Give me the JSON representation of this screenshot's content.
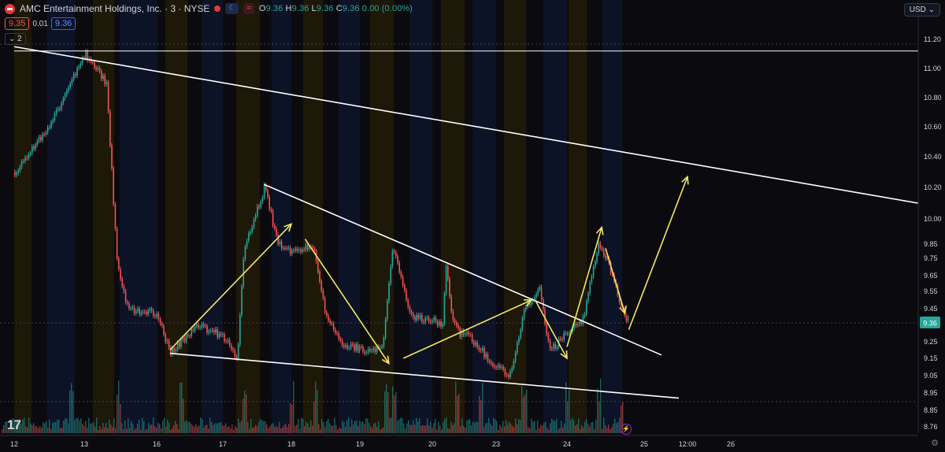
{
  "header": {
    "symbol_title": "AMC Entertainment Holdings, Inc. · 3 · NYSE",
    "market_badge": "☾",
    "wave_badge": "≈",
    "open_label": "O",
    "open": "9.36",
    "high_label": "H",
    "high": "9.36",
    "low_label": "L",
    "low": "9.36",
    "close_label": "C",
    "close": "9.36",
    "change": "0.00 (0.00%)"
  },
  "quote": {
    "bid": "9.35",
    "spread": "0.01",
    "ask": "9.36"
  },
  "indicator_toggle": "⌄ 2",
  "currency_button": "USD ⌄",
  "logo_text": "17",
  "colors": {
    "up": "#26a69a",
    "down": "#ef5350",
    "trendline": "#ffffff",
    "arrow": "#f5e663",
    "background": "#0b0b0f",
    "last_price_bg": "#26a69a"
  },
  "chart_data": {
    "type": "candlestick",
    "ylim": [
      8.7,
      11.3
    ],
    "y_ticks": [
      "11.20",
      "11.00",
      "10.80",
      "10.60",
      "10.40",
      "10.20",
      "10.00",
      "9.85",
      "9.75",
      "9.65",
      "9.55",
      "9.45",
      "9.36",
      "9.25",
      "9.15",
      "9.05",
      "8.95",
      "8.85",
      "8.76"
    ],
    "x_ticks": [
      "12",
      "13",
      "16",
      "17",
      "18",
      "19",
      "20",
      "23",
      "24",
      "25",
      "12:00",
      "26"
    ],
    "last_price": "9.36",
    "price_path": [
      {
        "x": "12",
        "y": 10.3
      },
      {
        "x": "12.5",
        "y": 10.6
      },
      {
        "x": "13",
        "y": 11.1
      },
      {
        "x": "13.3",
        "y": 10.9
      },
      {
        "x": "13.45",
        "y": 9.7
      },
      {
        "x": "13.6",
        "y": 9.45
      },
      {
        "x": "16",
        "y": 9.42
      },
      {
        "x": "16.2",
        "y": 9.18
      },
      {
        "x": "16.6",
        "y": 9.35
      },
      {
        "x": "17",
        "y": 9.28
      },
      {
        "x": "17.2",
        "y": 9.15
      },
      {
        "x": "17.3",
        "y": 9.8
      },
      {
        "x": "17.6",
        "y": 10.2
      },
      {
        "x": "17.8",
        "y": 9.85
      },
      {
        "x": "18",
        "y": 9.8
      },
      {
        "x": "18.3",
        "y": 9.85
      },
      {
        "x": "18.5",
        "y": 9.4
      },
      {
        "x": "18.7",
        "y": 9.25
      },
      {
        "x": "19",
        "y": 9.2
      },
      {
        "x": "19.3",
        "y": 9.2
      },
      {
        "x": "19.45",
        "y": 9.85
      },
      {
        "x": "19.7",
        "y": 9.4
      },
      {
        "x": "20",
        "y": 9.38
      },
      {
        "x": "20.3",
        "y": 9.35
      },
      {
        "x": "20.4",
        "y": 9.7
      },
      {
        "x": "20.6",
        "y": 9.4
      },
      {
        "x": "20.8",
        "y": 9.3
      },
      {
        "x": "21",
        "y": 9.3
      },
      {
        "x": "23",
        "y": 9.1
      },
      {
        "x": "23.2",
        "y": 9.05
      },
      {
        "x": "23.4",
        "y": 9.45
      },
      {
        "x": "23.6",
        "y": 9.58
      },
      {
        "x": "23.75",
        "y": 9.2
      },
      {
        "x": "24",
        "y": 9.3
      },
      {
        "x": "24.2",
        "y": 9.38
      },
      {
        "x": "24.4",
        "y": 9.85
      },
      {
        "x": "24.55",
        "y": 9.7
      },
      {
        "x": "24.7",
        "y": 9.45
      },
      {
        "x": "24.8",
        "y": 9.36
      }
    ],
    "trendlines": [
      {
        "x1": "12",
        "y1": 11.15,
        "x2": "26+",
        "y2": 10.1
      },
      {
        "x1": "17.6",
        "y1": 10.22,
        "x2": "25.2",
        "y2": 9.17
      },
      {
        "x1": "16.2",
        "y1": 9.18,
        "x2": "25.4",
        "y2": 8.92
      },
      {
        "x1": "12",
        "y1": 11.12,
        "x2": "26+",
        "y2": 11.12
      }
    ],
    "arrows": [
      {
        "x1": "16.2",
        "y1": 9.2,
        "x2": "18",
        "y2": 9.97
      },
      {
        "x1": "18.2",
        "y1": 9.88,
        "x2": "19.4",
        "y2": 9.12
      },
      {
        "x1": "19.6",
        "y1": 9.15,
        "x2": "23.5",
        "y2": 9.5
      },
      {
        "x1": "23.55",
        "y1": 9.5,
        "x2": "24",
        "y2": 9.15
      },
      {
        "x1": "24",
        "y1": 9.22,
        "x2": "24.45",
        "y2": 9.95
      },
      {
        "x1": "24.5",
        "y1": 9.82,
        "x2": "24.75",
        "y2": 9.42
      },
      {
        "x1": "24.8",
        "y1": 9.32,
        "x2": "25.5",
        "y2": 10.27
      }
    ]
  }
}
